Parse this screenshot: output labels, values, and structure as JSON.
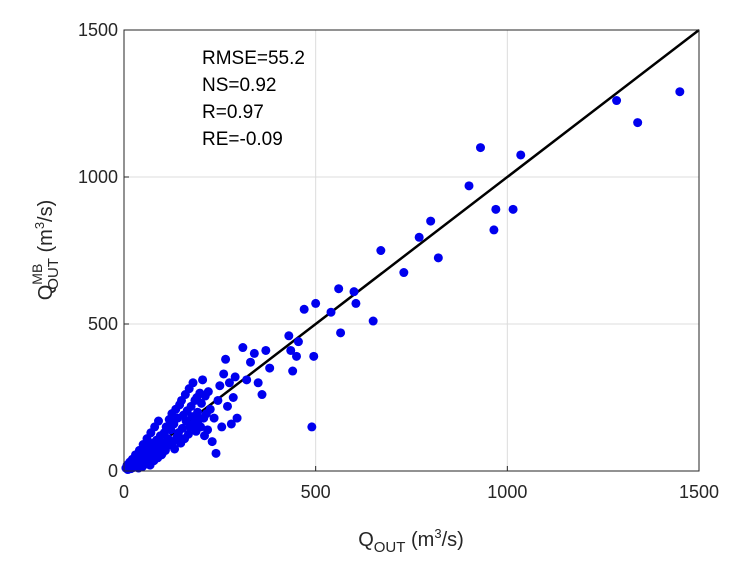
{
  "chart_data": {
    "type": "scatter",
    "xlim": [
      0,
      1500
    ],
    "ylim": [
      0,
      1500
    ],
    "x_ticks": [
      "0",
      "500",
      "1000",
      "1500"
    ],
    "y_ticks": [
      "0",
      "500",
      "1000",
      "1500"
    ],
    "grid": true,
    "xlabel": {
      "main": "Q",
      "sub": "OUT",
      "unit_pre": " (m",
      "unit_sup": "3",
      "unit_post": "/s)"
    },
    "ylabel": {
      "main": "Q",
      "sup": "MB",
      "sub": "OUT",
      "unit_pre": " (m",
      "unit_sup": "3",
      "unit_post": "/s)"
    },
    "annotations": [
      "RMSE=55.2",
      "NS=0.92",
      "R=0.97",
      "RE=-0.09"
    ],
    "reference_line": {
      "x": [
        0,
        1500
      ],
      "y": [
        0,
        1500
      ],
      "color": "#000000"
    },
    "marker_color": "#0000ee",
    "series": [
      {
        "points": [
          [
            5,
            10
          ],
          [
            8,
            20
          ],
          [
            10,
            5
          ],
          [
            12,
            15
          ],
          [
            15,
            30
          ],
          [
            18,
            8
          ],
          [
            20,
            25
          ],
          [
            22,
            40
          ],
          [
            25,
            12
          ],
          [
            28,
            35
          ],
          [
            30,
            55
          ],
          [
            32,
            20
          ],
          [
            35,
            45
          ],
          [
            38,
            10
          ],
          [
            40,
            70
          ],
          [
            42,
            30
          ],
          [
            45,
            60
          ],
          [
            48,
            15
          ],
          [
            50,
            90
          ],
          [
            52,
            40
          ],
          [
            55,
            75
          ],
          [
            58,
            25
          ],
          [
            60,
            110
          ],
          [
            62,
            50
          ],
          [
            65,
            85
          ],
          [
            68,
            20
          ],
          [
            70,
            130
          ],
          [
            72,
            60
          ],
          [
            75,
            95
          ],
          [
            78,
            35
          ],
          [
            80,
            150
          ],
          [
            82,
            70
          ],
          [
            85,
            105
          ],
          [
            88,
            45
          ],
          [
            90,
            170
          ],
          [
            92,
            80
          ],
          [
            95,
            120
          ],
          [
            98,
            55
          ],
          [
            100,
            60
          ],
          [
            103,
            95
          ],
          [
            105,
            130
          ],
          [
            108,
            70
          ],
          [
            110,
            150
          ],
          [
            112,
            85
          ],
          [
            115,
            110
          ],
          [
            118,
            175
          ],
          [
            120,
            90
          ],
          [
            122,
            140
          ],
          [
            125,
            195
          ],
          [
            128,
            100
          ],
          [
            130,
            160
          ],
          [
            132,
            75
          ],
          [
            135,
            210
          ],
          [
            138,
            115
          ],
          [
            140,
            180
          ],
          [
            142,
            130
          ],
          [
            145,
            225
          ],
          [
            148,
            95
          ],
          [
            150,
            240
          ],
          [
            152,
            145
          ],
          [
            155,
            190
          ],
          [
            158,
            110
          ],
          [
            160,
            260
          ],
          [
            162,
            170
          ],
          [
            165,
            205
          ],
          [
            168,
            125
          ],
          [
            170,
            280
          ],
          [
            172,
            150
          ],
          [
            175,
            220
          ],
          [
            178,
            185
          ],
          [
            180,
            300
          ],
          [
            182,
            160
          ],
          [
            185,
            240
          ],
          [
            188,
            135
          ],
          [
            190,
            250
          ],
          [
            192,
            200
          ],
          [
            195,
            175
          ],
          [
            198,
            265
          ],
          [
            200,
            150
          ],
          [
            202,
            230
          ],
          [
            205,
            310
          ],
          [
            208,
            180
          ],
          [
            210,
            120
          ],
          [
            212,
            255
          ],
          [
            215,
            195
          ],
          [
            218,
            140
          ],
          [
            220,
            270
          ],
          [
            225,
            210
          ],
          [
            230,
            100
          ],
          [
            235,
            180
          ],
          [
            240,
            60
          ],
          [
            245,
            240
          ],
          [
            250,
            290
          ],
          [
            255,
            150
          ],
          [
            260,
            330
          ],
          [
            265,
            380
          ],
          [
            270,
            220
          ],
          [
            275,
            300
          ],
          [
            280,
            160
          ],
          [
            285,
            250
          ],
          [
            290,
            320
          ],
          [
            295,
            180
          ],
          [
            310,
            420
          ],
          [
            320,
            310
          ],
          [
            330,
            370
          ],
          [
            340,
            400
          ],
          [
            350,
            300
          ],
          [
            360,
            260
          ],
          [
            370,
            410
          ],
          [
            380,
            350
          ],
          [
            430,
            460
          ],
          [
            435,
            410
          ],
          [
            440,
            340
          ],
          [
            450,
            390
          ],
          [
            455,
            440
          ],
          [
            470,
            550
          ],
          [
            490,
            150
          ],
          [
            495,
            390
          ],
          [
            500,
            570
          ],
          [
            540,
            540
          ],
          [
            560,
            620
          ],
          [
            565,
            470
          ],
          [
            600,
            610
          ],
          [
            605,
            570
          ],
          [
            650,
            510
          ],
          [
            670,
            750
          ],
          [
            730,
            675
          ],
          [
            770,
            795
          ],
          [
            800,
            850
          ],
          [
            820,
            725
          ],
          [
            900,
            970
          ],
          [
            930,
            1100
          ],
          [
            965,
            820
          ],
          [
            970,
            890
          ],
          [
            1015,
            890
          ],
          [
            1035,
            1075
          ],
          [
            1285,
            1260
          ],
          [
            1340,
            1185
          ],
          [
            1450,
            1290
          ]
        ]
      }
    ]
  }
}
